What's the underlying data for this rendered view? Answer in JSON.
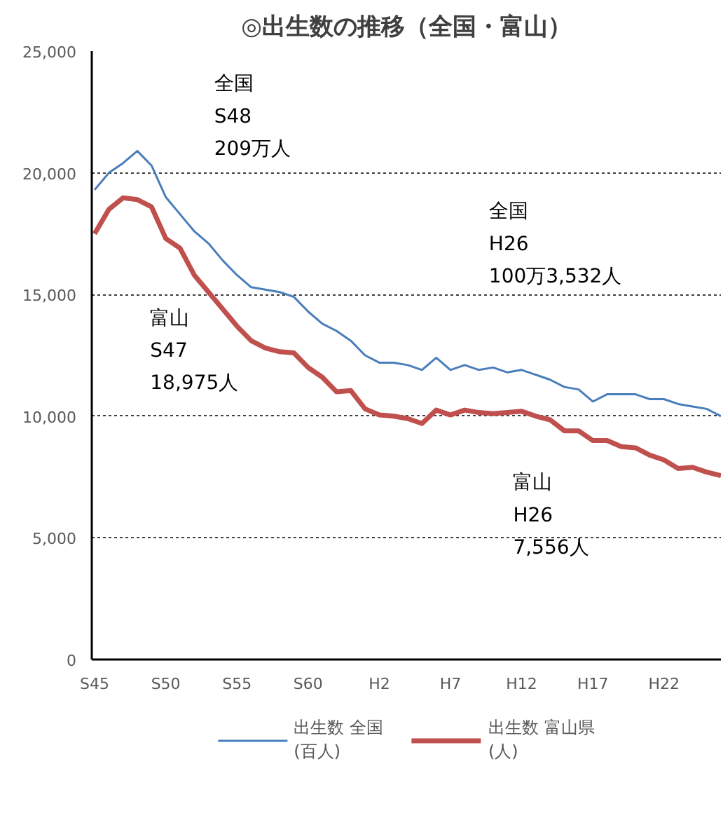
{
  "chart_data": {
    "type": "line",
    "title": "◎出生数の推移（全国・富山）",
    "categories": [
      "S45",
      null,
      null,
      null,
      null,
      "S50",
      null,
      null,
      null,
      null,
      "S55",
      null,
      null,
      null,
      null,
      "S60",
      null,
      null,
      null,
      null,
      "H2",
      null,
      null,
      null,
      null,
      "H7",
      null,
      null,
      null,
      null,
      "H12",
      null,
      null,
      null,
      null,
      "H17",
      null,
      null,
      null,
      null,
      "H22",
      null,
      null,
      null,
      null
    ],
    "series": [
      {
        "name": "出生数 全国\n(百人)",
        "color": "#4a7ebb",
        "values": [
          19300,
          20000,
          20400,
          20900,
          20300,
          19000,
          18300,
          17600,
          17100,
          16400,
          15800,
          15300,
          15200,
          15100,
          14900,
          14300,
          13800,
          13500,
          13100,
          12500,
          12200,
          12200,
          12100,
          11900,
          12400,
          11900,
          12100,
          11900,
          12000,
          11800,
          11900,
          11700,
          11500,
          11200,
          11100,
          10600,
          10900,
          10900,
          10900,
          10700,
          10700,
          10500,
          10400,
          10300,
          10000
        ]
      },
      {
        "name": "出生数 富山県\n(人)",
        "color": "#c0504d",
        "values": [
          17500,
          18500,
          18975,
          18900,
          18600,
          17300,
          16900,
          15800,
          15100,
          14400,
          13700,
          13100,
          12800,
          12650,
          12600,
          12000,
          11600,
          11000,
          11050,
          10300,
          10050,
          10000,
          9900,
          9700,
          10250,
          10050,
          10250,
          10150,
          10100,
          10150,
          10200,
          10000,
          9850,
          9400,
          9400,
          9000,
          9000,
          8750,
          8700,
          8400,
          8200,
          7850,
          7900,
          7700,
          7556
        ]
      }
    ],
    "ylim": [
      0,
      25000
    ],
    "yticks": [
      {
        "value": 0,
        "label": "0"
      },
      {
        "value": 5000,
        "label": "5,000"
      },
      {
        "value": 10000,
        "label": "10,000"
      },
      {
        "value": 15000,
        "label": "15,000"
      },
      {
        "value": 20000,
        "label": "20,000"
      },
      {
        "value": 25000,
        "label": "25,000"
      }
    ],
    "grid": "y",
    "legend": "bottom",
    "line_style": "solid",
    "marker": "none",
    "annotations": [
      "全国\nS48\n209万人",
      "全国\nH26\n100万3,532人",
      "富山\nS47\n18,975人",
      "富山\nH26\n7,556人"
    ]
  }
}
